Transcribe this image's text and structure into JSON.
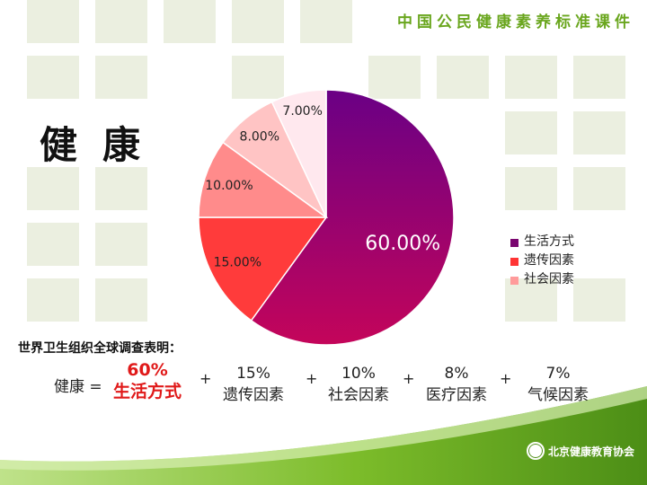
{
  "header": {
    "course_title": "中国公民健康素养标准课件"
  },
  "slide": {
    "title": "健康",
    "note": "世界卫生组织全球调查表明：",
    "footer_logo": "北京健康教育协会"
  },
  "equation": {
    "lhs": "健康 =",
    "plus": "+",
    "terms": [
      {
        "pct": "60%",
        "label": "生活方式",
        "highlight": true
      },
      {
        "pct": "15%",
        "label": "遗传因素"
      },
      {
        "pct": "10%",
        "label": "社会因素"
      },
      {
        "pct": "8%",
        "label": "医疗因素"
      },
      {
        "pct": "7%",
        "label": "气候因素"
      }
    ]
  },
  "chart_data": {
    "type": "pie",
    "slices": [
      {
        "label": "60.00%",
        "value": 60,
        "color": "#9c0f72"
      },
      {
        "label": "15.00%",
        "value": 15,
        "color": "#ff3b3b"
      },
      {
        "label": "10.00%",
        "value": 10,
        "color": "#ff8b8b"
      },
      {
        "label": "8.00%",
        "value": 8,
        "color": "#ffc4c4"
      },
      {
        "label": "7.00%",
        "value": 7,
        "color": "#ffe8ee"
      }
    ],
    "legend": [
      {
        "label": "生活方式",
        "color": "#7a0670"
      },
      {
        "label": "遗传因素",
        "color": "#ff3434"
      },
      {
        "label": "社会因素",
        "color": "#ff9b9b"
      }
    ],
    "legend_position": "right"
  }
}
